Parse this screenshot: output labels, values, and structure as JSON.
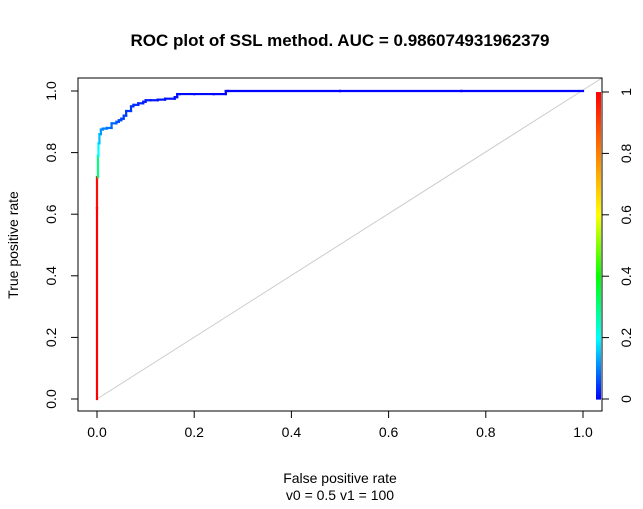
{
  "chart_data": {
    "type": "line",
    "title": "ROC plot of SSL method. AUC =  0.986074931962379",
    "xlabel": "False positive rate",
    "xlabel_sub": "v0 =  0.5 v1 = 100",
    "ylabel": "True positive rate",
    "xlim": [
      0,
      1
    ],
    "ylim": [
      0,
      1
    ],
    "x_ticks": [
      0.0,
      0.2,
      0.4,
      0.6,
      0.8,
      1.0
    ],
    "x_tick_labels": [
      "0.0",
      "0.2",
      "0.4",
      "0.6",
      "0.8",
      "1.0"
    ],
    "y_ticks": [
      0.0,
      0.2,
      0.4,
      0.6,
      0.8,
      1.0
    ],
    "y_tick_labels": [
      "0.0",
      "0.2",
      "0.4",
      "0.6",
      "0.8",
      "1.0"
    ],
    "grid": false,
    "reference_line": {
      "x": [
        0,
        1
      ],
      "y": [
        0,
        1
      ],
      "color": "#cccccc"
    },
    "colorbar": {
      "ticks": [
        0,
        0.2,
        0.4,
        0.6,
        0.8,
        1
      ],
      "tick_labels": [
        "0",
        "0.2",
        "0.4",
        "0.6",
        "0.8",
        "1"
      ],
      "colors": [
        "#0000ff",
        "#00ffff",
        "#00ff00",
        "#ffff00",
        "#ff8000",
        "#ff0000"
      ]
    },
    "series": [
      {
        "colored_by": "cutoff",
        "x": [
          0.0,
          0.0,
          0.002,
          0.003,
          0.005,
          0.008,
          0.012,
          0.02,
          0.03,
          0.04,
          0.045,
          0.05,
          0.055,
          0.06,
          0.07,
          0.075,
          0.085,
          0.095,
          0.1,
          0.11,
          0.125,
          0.14,
          0.16,
          0.165,
          0.17,
          0.2,
          0.24,
          0.265,
          0.27,
          0.5,
          0.75,
          1.0
        ],
        "y": [
          0.0,
          0.62,
          0.72,
          0.79,
          0.83,
          0.86,
          0.875,
          0.878,
          0.88,
          0.895,
          0.9,
          0.905,
          0.91,
          0.92,
          0.935,
          0.95,
          0.955,
          0.96,
          0.965,
          0.97,
          0.97,
          0.972,
          0.975,
          0.98,
          0.99,
          0.99,
          0.99,
          0.99,
          1.0,
          1.0,
          1.0,
          1.0
        ],
        "cutoff": [
          1.0,
          0.98,
          0.3,
          0.2,
          0.15,
          0.12,
          0.1,
          0.09,
          0.08,
          0.07,
          0.06,
          0.055,
          0.05,
          0.045,
          0.04,
          0.035,
          0.03,
          0.025,
          0.02,
          0.018,
          0.016,
          0.014,
          0.012,
          0.01,
          0.008,
          0.006,
          0.004,
          0.002,
          0.001,
          0.0005,
          0.0002,
          0.0
        ]
      }
    ]
  }
}
